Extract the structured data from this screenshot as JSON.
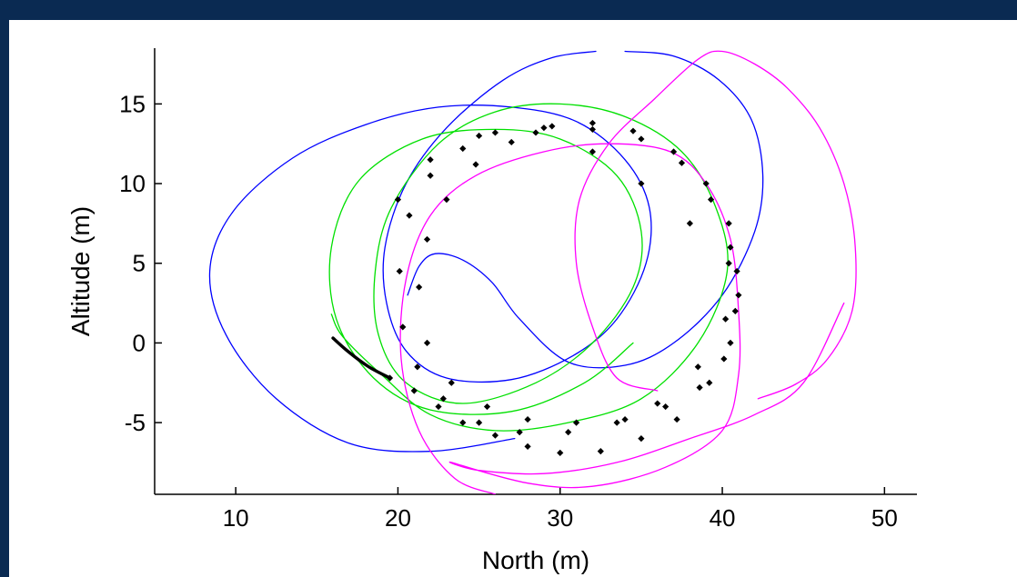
{
  "chart_data": {
    "type": "line",
    "title": "",
    "xlabel": "North (m)",
    "ylabel": "Altitude (m)",
    "xlim": [
      5,
      52
    ],
    "ylim": [
      -9.5,
      18.5
    ],
    "xticks": [
      10,
      20,
      30,
      40,
      50
    ],
    "yticks": [
      -5,
      0,
      5,
      10,
      15
    ],
    "grid": false,
    "legend": "none",
    "series": [
      {
        "color": "#0000ff",
        "style": "line",
        "points": [
          [
            27.2,
            -6.0
          ],
          [
            22.0,
            -6.8
          ],
          [
            17.0,
            -6.3
          ],
          [
            12.5,
            -3.5
          ],
          [
            9.4,
            0.5
          ],
          [
            8.4,
            4.5
          ],
          [
            9.8,
            8.2
          ],
          [
            13.5,
            11.6
          ],
          [
            18.0,
            13.7
          ],
          [
            22.5,
            14.8
          ],
          [
            27.0,
            14.8
          ],
          [
            31.0,
            13.9
          ],
          [
            34.0,
            11.5
          ],
          [
            35.5,
            8.5
          ],
          [
            35.3,
            5.0
          ],
          [
            33.5,
            1.5
          ],
          [
            30.8,
            -0.8
          ],
          [
            27.0,
            -2.3
          ],
          [
            23.0,
            -2.2
          ],
          [
            20.5,
            -0.5
          ],
          [
            19.3,
            2.5
          ],
          [
            19.2,
            6.0
          ],
          [
            20.5,
            10.0
          ],
          [
            23.0,
            13.5
          ],
          [
            26.5,
            16.5
          ],
          [
            29.5,
            17.9
          ],
          [
            32.2,
            18.3
          ]
        ]
      },
      {
        "color": "#0000ff",
        "style": "line",
        "points": [
          [
            34.0,
            18.3
          ],
          [
            37.0,
            18.0
          ],
          [
            39.8,
            16.5
          ],
          [
            41.8,
            14.0
          ],
          [
            42.5,
            10.5
          ],
          [
            42.0,
            7.0
          ],
          [
            40.0,
            3.0
          ],
          [
            37.0,
            0.0
          ],
          [
            34.0,
            -1.4
          ],
          [
            30.5,
            -1.2
          ],
          [
            27.5,
            1.5
          ],
          [
            25.8,
            3.8
          ],
          [
            24.0,
            5.2
          ],
          [
            22.3,
            5.6
          ],
          [
            21.3,
            4.8
          ],
          [
            20.6,
            3.0
          ]
        ]
      },
      {
        "color": "#00e000",
        "style": "line",
        "points": [
          [
            34.5,
            0.0
          ],
          [
            31.5,
            -2.5
          ],
          [
            27.0,
            -4.3
          ],
          [
            22.0,
            -4.2
          ],
          [
            18.5,
            -2.2
          ],
          [
            16.2,
            1.5
          ],
          [
            15.9,
            6.0
          ],
          [
            17.6,
            10.2
          ],
          [
            21.5,
            12.8
          ],
          [
            26.0,
            13.4
          ],
          [
            30.0,
            12.8
          ],
          [
            33.5,
            10.5
          ],
          [
            35.0,
            7.0
          ],
          [
            34.5,
            3.5
          ],
          [
            32.0,
            0.0
          ],
          [
            28.5,
            -2.5
          ],
          [
            24.0,
            -3.8
          ],
          [
            20.5,
            -2.5
          ],
          [
            18.8,
            0.5
          ],
          [
            18.6,
            4.5
          ],
          [
            19.6,
            8.5
          ],
          [
            22.5,
            12.5
          ],
          [
            26.0,
            14.5
          ],
          [
            30.0,
            15.0
          ],
          [
            34.0,
            14.2
          ],
          [
            37.5,
            12.0
          ],
          [
            39.6,
            8.5
          ],
          [
            40.3,
            4.5
          ],
          [
            38.5,
            0.0
          ],
          [
            35.0,
            -3.5
          ],
          [
            30.5,
            -5.0
          ],
          [
            26.0,
            -5.5
          ],
          [
            22.0,
            -4.5
          ],
          [
            19.0,
            -2.0
          ],
          [
            16.6,
            0.4
          ],
          [
            15.9,
            1.8
          ]
        ]
      },
      {
        "color": "#ff00ff",
        "style": "line",
        "points": [
          [
            47.5,
            2.5
          ],
          [
            45.0,
            -2.5
          ],
          [
            42.0,
            -4.5
          ],
          [
            38.0,
            -6.0
          ],
          [
            33.5,
            -7.5
          ],
          [
            29.0,
            -8.2
          ],
          [
            25.0,
            -8.0
          ],
          [
            23.3,
            -7.5
          ],
          [
            28.0,
            -8.8
          ],
          [
            32.0,
            -9.0
          ],
          [
            36.5,
            -7.8
          ],
          [
            40.0,
            -5.5
          ],
          [
            41.0,
            -2.0
          ],
          [
            41.0,
            2.0
          ],
          [
            40.5,
            6.5
          ],
          [
            39.0,
            10.0
          ],
          [
            36.8,
            12.0
          ],
          [
            33.0,
            12.5
          ],
          [
            29.0,
            12.0
          ],
          [
            24.8,
            10.5
          ],
          [
            22.0,
            8.0
          ],
          [
            20.5,
            4.0
          ],
          [
            20.2,
            -1.0
          ],
          [
            21.3,
            -5.5
          ],
          [
            23.5,
            -8.5
          ],
          [
            26.0,
            -9.5
          ]
        ]
      },
      {
        "color": "#ff00ff",
        "style": "line",
        "points": [
          [
            36.0,
            -3.0
          ],
          [
            33.5,
            -2.2
          ],
          [
            32.0,
            1.0
          ],
          [
            31.0,
            5.0
          ],
          [
            31.2,
            9.0
          ],
          [
            33.0,
            12.5
          ],
          [
            35.8,
            15.3
          ],
          [
            38.5,
            17.8
          ],
          [
            40.0,
            18.3
          ],
          [
            42.0,
            17.5
          ],
          [
            44.0,
            16.0
          ],
          [
            46.0,
            13.5
          ],
          [
            47.5,
            10.0
          ],
          [
            48.2,
            6.0
          ],
          [
            48.0,
            2.0
          ],
          [
            46.5,
            -1.0
          ],
          [
            44.5,
            -2.6
          ],
          [
            42.2,
            -3.5
          ]
        ]
      },
      {
        "color": "#000000",
        "style": "line",
        "points": [
          [
            16.0,
            0.3
          ],
          [
            17.0,
            -0.6
          ],
          [
            18.2,
            -1.5
          ],
          [
            19.5,
            -2.2
          ]
        ]
      },
      {
        "color": "#000000",
        "style": "dots",
        "points": [
          [
            19.5,
            -2.2
          ],
          [
            21.0,
            -3.0
          ],
          [
            22.5,
            -4.0
          ],
          [
            24.0,
            -5.0
          ],
          [
            26.0,
            -5.8
          ],
          [
            28.0,
            -6.5
          ],
          [
            30.0,
            -6.9
          ],
          [
            32.5,
            -6.8
          ],
          [
            35.0,
            -6.0
          ],
          [
            37.2,
            -4.8
          ],
          [
            39.2,
            -2.5
          ],
          [
            40.5,
            0.0
          ],
          [
            41.0,
            3.0
          ],
          [
            40.5,
            6.0
          ],
          [
            39.3,
            9.0
          ],
          [
            37.5,
            11.3
          ],
          [
            35.0,
            12.8
          ],
          [
            32.0,
            13.4
          ],
          [
            29.0,
            13.5
          ],
          [
            26.0,
            13.2
          ],
          [
            24.0,
            12.2
          ],
          [
            22.0,
            10.5
          ],
          [
            20.7,
            8.0
          ],
          [
            20.1,
            4.5
          ],
          [
            20.3,
            1.0
          ],
          [
            21.2,
            -1.5
          ],
          [
            22.8,
            -3.5
          ],
          [
            25.0,
            -5.0
          ],
          [
            27.5,
            -5.6
          ],
          [
            30.5,
            -5.6
          ],
          [
            33.5,
            -5.0
          ],
          [
            36.0,
            -3.8
          ],
          [
            38.5,
            -1.5
          ],
          [
            40.2,
            1.5
          ],
          [
            40.9,
            4.5
          ],
          [
            40.4,
            7.5
          ],
          [
            39.0,
            10.0
          ],
          [
            37.0,
            12.0
          ],
          [
            34.5,
            13.3
          ],
          [
            32.0,
            13.8
          ],
          [
            29.5,
            13.6
          ],
          [
            27.0,
            12.6
          ],
          [
            24.8,
            11.2
          ],
          [
            23.0,
            9.0
          ],
          [
            21.8,
            6.5
          ],
          [
            21.3,
            3.5
          ],
          [
            21.8,
            0.0
          ],
          [
            23.3,
            -2.5
          ],
          [
            25.5,
            -4.0
          ],
          [
            28.0,
            -4.8
          ],
          [
            31.0,
            -5.0
          ],
          [
            34.0,
            -4.8
          ],
          [
            36.5,
            -4.0
          ],
          [
            38.6,
            -2.8
          ],
          [
            40.1,
            -1.0
          ],
          [
            40.8,
            2.0
          ],
          [
            40.4,
            5.0
          ],
          [
            38.0,
            7.5
          ],
          [
            35.0,
            10.0
          ],
          [
            32.0,
            12.0
          ],
          [
            28.5,
            13.2
          ],
          [
            25.0,
            13.0
          ],
          [
            22.0,
            11.5
          ],
          [
            20.0,
            9.0
          ]
        ]
      }
    ]
  }
}
